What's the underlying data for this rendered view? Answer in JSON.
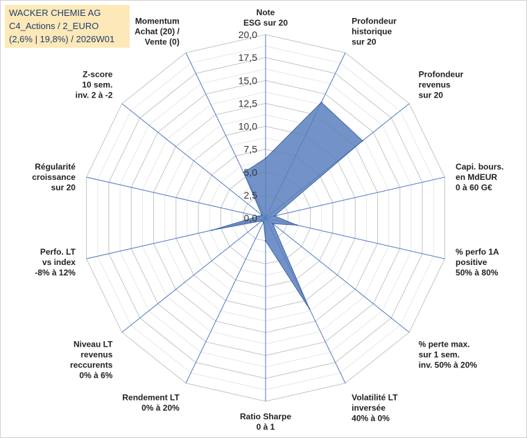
{
  "header": {
    "line1": "WACKER CHEMIE AG",
    "line2": "C4_Actions / 2_EURO",
    "line3": "(2,6% | 19,8%) / 2026W01"
  },
  "colors": {
    "title_background": "#fde9b8",
    "title_text": "#1f3b6b",
    "spoke": "#4f79c2",
    "grid": "#cfcfcf",
    "area_fill": "#5b7fbd",
    "area_stroke": "#3f67a8"
  },
  "chart_data": {
    "type": "radar",
    "title": "",
    "rmin": 0,
    "rmax": 20,
    "tick_labels": [
      "0,0",
      "2,5",
      "5,0",
      "7,5",
      "10,0",
      "12,5",
      "15,0",
      "17,5",
      "20,0"
    ],
    "grid": true,
    "axes": [
      {
        "label": [
          "Note",
          "ESG sur 20"
        ],
        "value": 6.5
      },
      {
        "label": [
          "Profondeur",
          "historique",
          "sur 20"
        ],
        "value": 14.0
      },
      {
        "label": [
          "Profondeur",
          "revenus",
          "sur 20"
        ],
        "value": 13.5
      },
      {
        "label": [
          "Capi. bours.",
          "en MdEUR",
          "0 à 60 G€"
        ],
        "value": 1.0
      },
      {
        "label": [
          "% perfo 1A",
          "positive",
          "50% à 80%"
        ],
        "value": 3.5
      },
      {
        "label": [
          "% perte max.",
          "sur 1 sem.",
          "inv. 50% à 20%"
        ],
        "value": 1.0
      },
      {
        "label": [
          "Volatilité LT",
          "inversée",
          "40% à 0%"
        ],
        "value": 11.0
      },
      {
        "label": [
          "Ratio Sharpe",
          "0 à 1"
        ],
        "value": 2.5
      },
      {
        "label": [
          "Rendement LT",
          "0% à 20%"
        ],
        "value": 0.5
      },
      {
        "label": [
          "Niveau LT",
          "revenus",
          "reccurents",
          "0% à 6%"
        ],
        "value": 0.5
      },
      {
        "label": [
          "Perfo. LT",
          "vs index",
          "-8% à 12%"
        ],
        "value": 6.0
      },
      {
        "label": [
          "Régularité",
          "croissance",
          "sur 20"
        ],
        "value": 0.8
      },
      {
        "label": [
          "Z-score",
          "10 sem.",
          "inv. 2 à -2"
        ],
        "value": 0.5
      },
      {
        "label": [
          "Momentum",
          "Achat (20) /",
          "Vente (0)"
        ],
        "value": 5.5
      }
    ]
  }
}
